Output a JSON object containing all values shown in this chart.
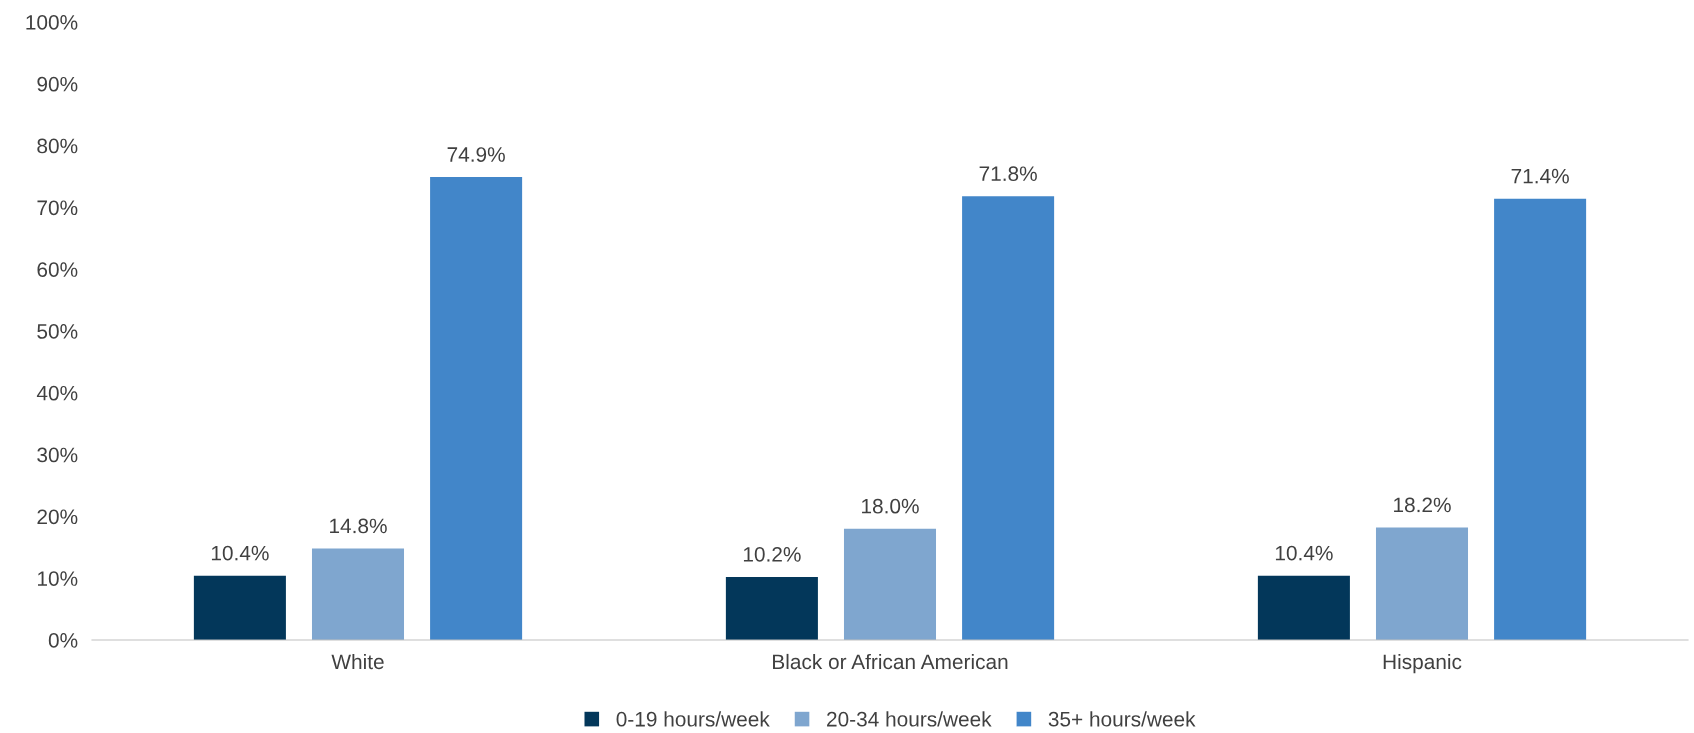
{
  "chart_data": {
    "type": "bar",
    "categories": [
      "White",
      "Black or African American",
      "Hispanic"
    ],
    "series": [
      {
        "name": "0-19 hours/week",
        "color": "#03375a",
        "values": [
          10.4,
          10.2,
          10.4
        ],
        "value_labels": [
          "10.4%",
          "10.2%",
          "10.4%"
        ]
      },
      {
        "name": "20-34 hours/week",
        "color": "#7fa6cf",
        "values": [
          14.8,
          18.0,
          18.2
        ],
        "value_labels": [
          "14.8%",
          "18.0%",
          "18.2%"
        ]
      },
      {
        "name": "35+ hours/week",
        "color": "#4286c9",
        "values": [
          74.9,
          71.8,
          71.4
        ],
        "value_labels": [
          "74.9%",
          "71.8%",
          "71.4%"
        ]
      }
    ],
    "ylim": [
      0,
      100
    ],
    "yticks": [
      {
        "value": 0,
        "label": "0%"
      },
      {
        "value": 10,
        "label": "10%"
      },
      {
        "value": 20,
        "label": "20%"
      },
      {
        "value": 30,
        "label": "30%"
      },
      {
        "value": 40,
        "label": "40%"
      },
      {
        "value": 50,
        "label": "50%"
      },
      {
        "value": 60,
        "label": "60%"
      },
      {
        "value": 70,
        "label": "70%"
      },
      {
        "value": 80,
        "label": "80%"
      },
      {
        "value": 90,
        "label": "90%"
      },
      {
        "value": 100,
        "label": "100%"
      }
    ],
    "grid": false,
    "legend": "bottom"
  }
}
